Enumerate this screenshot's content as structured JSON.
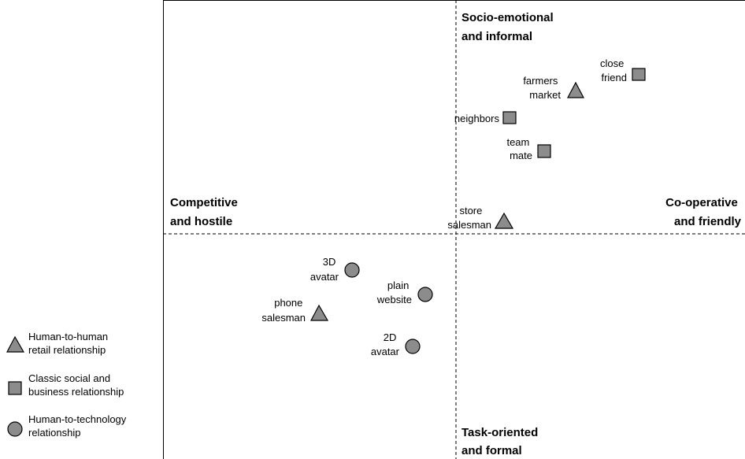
{
  "diagram": {
    "axes": {
      "top": [
        "Socio-emotional",
        "and informal"
      ],
      "bottom": [
        "Task-oriented",
        "and formal"
      ],
      "left": [
        "Competitive",
        "and hostile"
      ],
      "right": [
        "Co-operative",
        "and friendly"
      ]
    },
    "points": [
      {
        "label": [
          "close",
          "friend"
        ],
        "shape": "square"
      },
      {
        "label": [
          "farmers",
          "market"
        ],
        "shape": "triangle"
      },
      {
        "label": [
          "neighbors"
        ],
        "shape": "square"
      },
      {
        "label": [
          "team",
          "mate"
        ],
        "shape": "square"
      },
      {
        "label": [
          "store",
          "salesman"
        ],
        "shape": "triangle"
      },
      {
        "label": [
          "3D",
          "avatar"
        ],
        "shape": "circle"
      },
      {
        "label": [
          "plain",
          "website"
        ],
        "shape": "circle"
      },
      {
        "label": [
          "phone",
          "salesman"
        ],
        "shape": "triangle"
      },
      {
        "label": [
          "2D",
          "avatar"
        ],
        "shape": "circle"
      }
    ],
    "legend": [
      {
        "shape": "triangle",
        "label": [
          "Human-to-human",
          "retail relationship"
        ]
      },
      {
        "shape": "square",
        "label": [
          "Classic social and",
          "business relationship"
        ]
      },
      {
        "shape": "circle",
        "label": [
          "Human-to-technology",
          "relationship"
        ]
      }
    ],
    "colors": {
      "marker_fill": "#8c8c8c",
      "stroke": "#000000"
    }
  }
}
